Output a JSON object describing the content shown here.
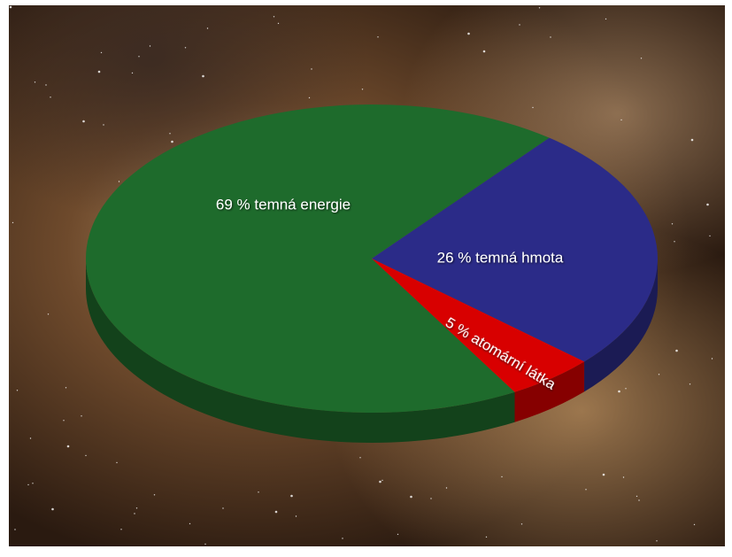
{
  "chart_data": {
    "type": "pie3d",
    "values": [
      69,
      26,
      5
    ],
    "value_labels": [
      "69 % temná energie",
      "26 % temná hmota",
      "5 % atomární látka"
    ],
    "colors": [
      "#1e6b2c",
      "#2b2b88",
      "#d80000"
    ]
  }
}
